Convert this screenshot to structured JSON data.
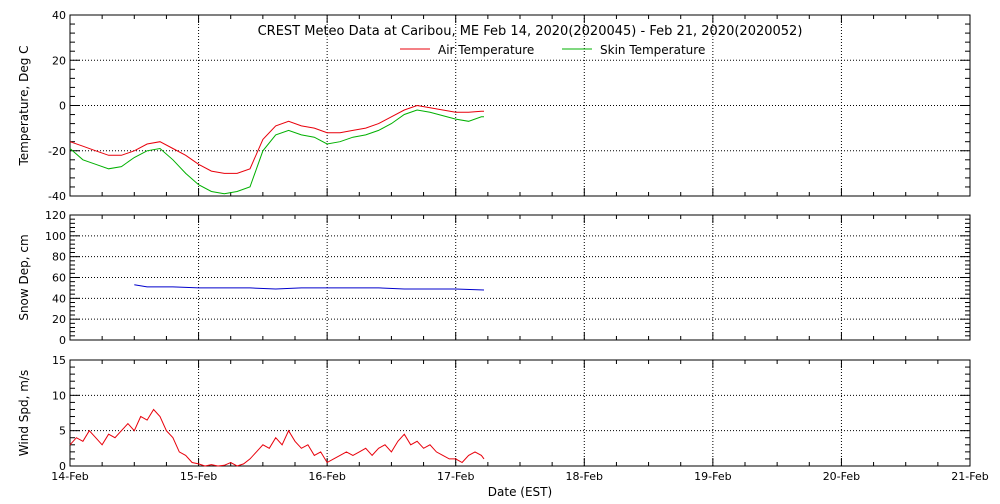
{
  "chart_data": [
    {
      "type": "line",
      "title": "CREST Meteo Data at Caribou, ME   Feb 14, 2020(2020045) - Feb 21, 2020(2020052)",
      "ylabel": "Temperature, Deg C",
      "ylim": [
        -40,
        40
      ],
      "yticks": [
        -40,
        -20,
        0,
        20,
        40
      ],
      "grid": true,
      "legend": "top-center",
      "x_unit": "days from Feb 14 00:00 (EST)",
      "series": [
        {
          "name": "Air Temperature",
          "color": "#e8000b",
          "x": [
            0,
            0.1,
            0.2,
            0.3,
            0.4,
            0.5,
            0.6,
            0.7,
            0.8,
            0.9,
            1.0,
            1.1,
            1.2,
            1.3,
            1.4,
            1.5,
            1.6,
            1.7,
            1.8,
            1.9,
            2.0,
            2.1,
            2.2,
            2.3,
            2.4,
            2.5,
            2.6,
            2.7,
            2.8,
            3.0,
            3.1,
            3.2,
            3.22
          ],
          "y": [
            -16,
            -18,
            -20,
            -22,
            -22,
            -20,
            -17,
            -16,
            -19,
            -22,
            -26,
            -29,
            -30,
            -30,
            -28,
            -15,
            -9,
            -7,
            -9,
            -10,
            -12,
            -12,
            -11,
            -10,
            -8,
            -5,
            -2,
            0,
            -1,
            -3,
            -3,
            -2.5,
            -2.5
          ]
        },
        {
          "name": "Skin Temperature",
          "color": "#00b000",
          "x": [
            0,
            0.1,
            0.2,
            0.3,
            0.4,
            0.5,
            0.6,
            0.7,
            0.8,
            0.9,
            1.0,
            1.1,
            1.2,
            1.3,
            1.4,
            1.5,
            1.6,
            1.7,
            1.8,
            1.9,
            2.0,
            2.1,
            2.2,
            2.3,
            2.4,
            2.5,
            2.6,
            2.7,
            2.8,
            3.0,
            3.1,
            3.2,
            3.22
          ],
          "y": [
            -19,
            -24,
            -26,
            -28,
            -27,
            -23,
            -20,
            -19,
            -24,
            -30,
            -35,
            -38,
            -39,
            -38,
            -36,
            -20,
            -13,
            -11,
            -13,
            -14,
            -17,
            -16,
            -14,
            -13,
            -11,
            -8,
            -4,
            -2,
            -3,
            -6,
            -7,
            -5,
            -5
          ]
        }
      ]
    },
    {
      "type": "line",
      "ylabel": "Snow Dep, cm",
      "ylim": [
        0,
        120
      ],
      "yticks": [
        0,
        20,
        40,
        60,
        80,
        100,
        120
      ],
      "grid": true,
      "series": [
        {
          "color": "#0000cc",
          "x": [
            0.5,
            0.6,
            0.8,
            1.0,
            1.2,
            1.4,
            1.6,
            1.8,
            2.0,
            2.2,
            2.4,
            2.6,
            2.8,
            3.0,
            3.22
          ],
          "y": [
            53,
            51,
            51,
            50,
            50,
            50,
            49,
            50,
            50,
            50,
            50,
            49,
            49,
            49,
            48
          ]
        }
      ]
    },
    {
      "type": "line",
      "ylabel": "Wind Spd, m/s",
      "xlabel": "Date (EST)",
      "ylim": [
        0,
        15
      ],
      "yticks": [
        0,
        5,
        10,
        15
      ],
      "xlim": [
        0,
        7
      ],
      "xticks": [
        "14-Feb",
        "15-Feb",
        "16-Feb",
        "17-Feb",
        "18-Feb",
        "19-Feb",
        "20-Feb",
        "21-Feb"
      ],
      "grid": true,
      "series": [
        {
          "color": "#e8000b",
          "x": [
            0,
            0.05,
            0.1,
            0.15,
            0.2,
            0.25,
            0.3,
            0.35,
            0.4,
            0.45,
            0.5,
            0.55,
            0.6,
            0.65,
            0.7,
            0.75,
            0.8,
            0.85,
            0.9,
            0.95,
            1.0,
            1.05,
            1.1,
            1.15,
            1.2,
            1.25,
            1.3,
            1.35,
            1.4,
            1.45,
            1.5,
            1.55,
            1.6,
            1.65,
            1.7,
            1.75,
            1.8,
            1.85,
            1.9,
            1.95,
            2.0,
            2.05,
            2.1,
            2.15,
            2.2,
            2.25,
            2.3,
            2.35,
            2.4,
            2.45,
            2.5,
            2.55,
            2.6,
            2.65,
            2.7,
            2.75,
            2.8,
            2.85,
            2.9,
            2.95,
            3.0,
            3.05,
            3.1,
            3.15,
            3.2,
            3.22
          ],
          "y": [
            3,
            4,
            3.5,
            5,
            4,
            3,
            4.5,
            4,
            5,
            6,
            5,
            7,
            6.5,
            8,
            7,
            5,
            4,
            2,
            1.5,
            0.5,
            0.3,
            0,
            0.2,
            0,
            0.1,
            0.5,
            0,
            0.3,
            1,
            2,
            3,
            2.5,
            4,
            3,
            5,
            3.5,
            2.5,
            3,
            1.5,
            2,
            0.5,
            1,
            1.5,
            2,
            1.5,
            2,
            2.5,
            1.5,
            2.5,
            3,
            2,
            3.5,
            4.5,
            3,
            3.5,
            2.5,
            3,
            2,
            1.5,
            1,
            1,
            0.5,
            1.5,
            2,
            1.5,
            1
          ]
        }
      ]
    }
  ]
}
